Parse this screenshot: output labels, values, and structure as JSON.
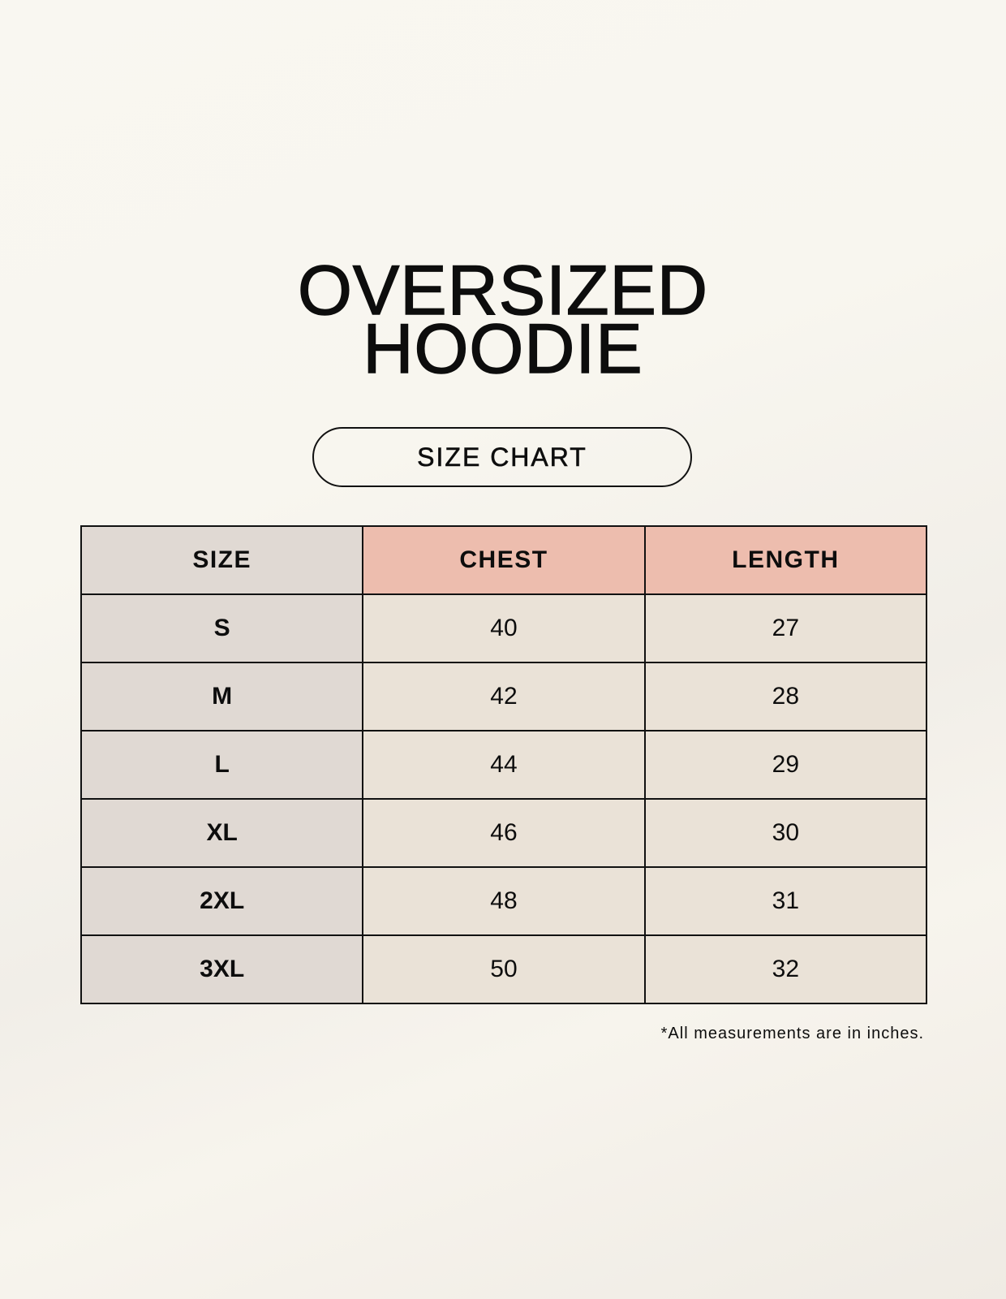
{
  "title": {
    "line1": "OVERSIZED",
    "line2": "HOODIE"
  },
  "subtitle": "SIZE CHART",
  "table": {
    "headers": [
      "SIZE",
      "CHEST",
      "LENGTH"
    ],
    "rows": [
      [
        "S",
        "40",
        "27"
      ],
      [
        "M",
        "42",
        "28"
      ],
      [
        "L",
        "44",
        "29"
      ],
      [
        "XL",
        "46",
        "30"
      ],
      [
        "2XL",
        "48",
        "31"
      ],
      [
        "3XL",
        "50",
        "32"
      ]
    ]
  },
  "footnote": "*All measurements are in inches.",
  "colors": {
    "size_column": "#e0d9d3",
    "header_accent": "#edbdae",
    "value_cells": "#eae2d7"
  }
}
